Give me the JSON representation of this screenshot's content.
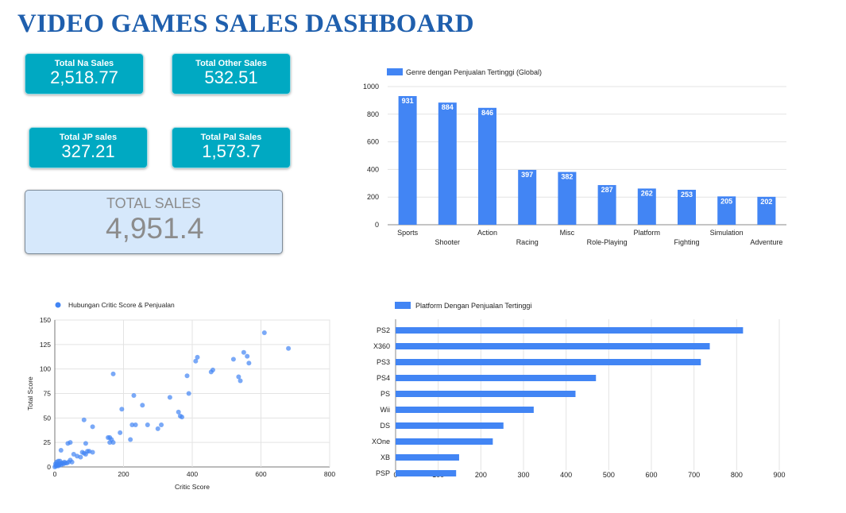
{
  "dashboard": {
    "title": "VIDEO GAMES SALES DASHBOARD"
  },
  "kpis": {
    "na": {
      "label": "Total Na Sales",
      "value": "2,518.77"
    },
    "other": {
      "label": "Total Other Sales",
      "value": "532.51"
    },
    "jp": {
      "label": "Total JP sales",
      "value": "327.21"
    },
    "pal": {
      "label": "Total Pal Sales",
      "value": "1,573.7"
    },
    "total": {
      "label": "TOTAL SALES",
      "value": "4,951.4"
    }
  },
  "colors": {
    "title": "#1f5fad",
    "kpi_bg": "#00a9c2",
    "total_bg": "#d6e8fb",
    "series": "#4285f4"
  },
  "chart_data": [
    {
      "type": "bar",
      "legend_position": "top-left",
      "grid": true,
      "categories": [
        "Sports",
        "Shooter",
        "Action",
        "Racing",
        "Misc",
        "Role-Playing",
        "Platform",
        "Fighting",
        "Simulation",
        "Adventure"
      ],
      "series": [
        {
          "name": "Genre dengan Penjualan Tertinggi (Global)",
          "values": [
            931,
            884,
            846,
            397,
            382,
            287,
            262,
            253,
            205,
            202
          ]
        }
      ],
      "ylim": [
        0,
        1000
      ],
      "yticks": [
        0,
        200,
        400,
        600,
        800,
        1000
      ],
      "xlabel": "",
      "ylabel": ""
    },
    {
      "type": "scatter",
      "legend_position": "top-left",
      "grid": true,
      "series": [
        {
          "name": "Hubungan Critic Score & Penjualan",
          "points": [
            [
              0,
              0
            ],
            [
              3,
              1
            ],
            [
              5,
              1
            ],
            [
              8,
              2
            ],
            [
              10,
              1
            ],
            [
              2,
              3
            ],
            [
              6,
              3
            ],
            [
              12,
              2
            ],
            [
              15,
              3
            ],
            [
              18,
              2
            ],
            [
              20,
              4
            ],
            [
              25,
              3
            ],
            [
              30,
              4
            ],
            [
              35,
              4
            ],
            [
              40,
              5
            ],
            [
              45,
              7
            ],
            [
              22,
              4
            ],
            [
              28,
              5
            ],
            [
              50,
              5
            ],
            [
              5,
              5
            ],
            [
              10,
              6
            ],
            [
              15,
              6
            ],
            [
              18,
              17
            ],
            [
              38,
              24
            ],
            [
              45,
              25
            ],
            [
              55,
              13
            ],
            [
              65,
              11
            ],
            [
              75,
              10
            ],
            [
              80,
              15
            ],
            [
              85,
              14
            ],
            [
              90,
              13
            ],
            [
              95,
              16
            ],
            [
              100,
              16
            ],
            [
              110,
              15
            ],
            [
              85,
              48
            ],
            [
              110,
              41
            ],
            [
              90,
              24
            ],
            [
              155,
              30
            ],
            [
              160,
              30
            ],
            [
              165,
              28
            ],
            [
              160,
              25
            ],
            [
              170,
              25
            ],
            [
              190,
              35
            ],
            [
              195,
              59
            ],
            [
              220,
              28
            ],
            [
              225,
              43
            ],
            [
              230,
              73
            ],
            [
              235,
              43
            ],
            [
              255,
              63
            ],
            [
              270,
              43
            ],
            [
              300,
              39
            ],
            [
              310,
              43
            ],
            [
              335,
              71
            ],
            [
              360,
              56
            ],
            [
              365,
              52
            ],
            [
              370,
              51
            ],
            [
              385,
              93
            ],
            [
              390,
              75
            ],
            [
              410,
              108
            ],
            [
              415,
              112
            ],
            [
              455,
              97
            ],
            [
              460,
              99
            ],
            [
              520,
              110
            ],
            [
              535,
              92
            ],
            [
              540,
              88
            ],
            [
              550,
              117
            ],
            [
              560,
              113
            ],
            [
              565,
              106
            ],
            [
              610,
              137
            ],
            [
              680,
              121
            ],
            [
              170,
              95
            ]
          ]
        }
      ],
      "xlim": [
        0,
        800
      ],
      "ylim": [
        0,
        150
      ],
      "xticks": [
        0,
        200,
        400,
        600,
        800
      ],
      "yticks": [
        0,
        25,
        50,
        75,
        100,
        125,
        150
      ],
      "xlabel": "Critic Score",
      "ylabel": "Total Score"
    },
    {
      "type": "bar",
      "orientation": "horizontal",
      "legend_position": "top-left",
      "grid": true,
      "categories": [
        "PS2",
        "X360",
        "PS3",
        "PS4",
        "PS",
        "Wii",
        "DS",
        "XOne",
        "XB",
        "PSP"
      ],
      "series": [
        {
          "name": "Platform Dengan Penjualan Tertinggi",
          "values": [
            815,
            737,
            716,
            470,
            422,
            324,
            253,
            228,
            149,
            142
          ]
        }
      ],
      "xlim": [
        0,
        900
      ],
      "xticks": [
        0,
        100,
        200,
        300,
        400,
        500,
        600,
        700,
        800,
        900
      ],
      "xlabel": "",
      "ylabel": ""
    }
  ]
}
